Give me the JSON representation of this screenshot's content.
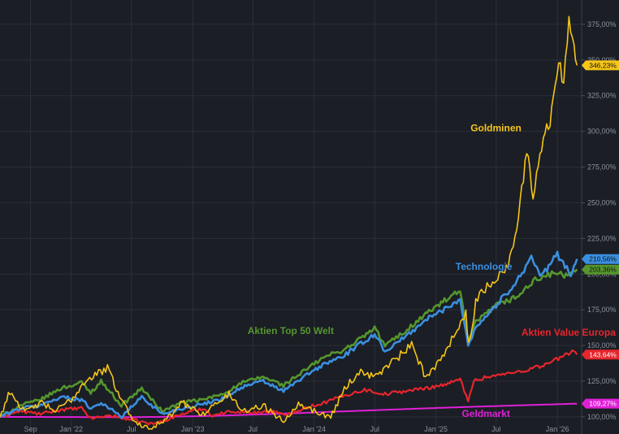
{
  "chart_data": {
    "type": "line",
    "title": "",
    "xlabel": "",
    "ylabel": "",
    "ylim": [
      88,
      392
    ],
    "xlim": [
      "2021-06-01",
      "2026-03-15"
    ],
    "grid": true,
    "legend": "inline labels",
    "y_ticks": [
      "100,00%",
      "125,00%",
      "150,00%",
      "175,00%",
      "200,00%",
      "225,00%",
      "250,00%",
      "275,00%",
      "300,00%",
      "325,00%",
      "350,00%",
      "375,00%"
    ],
    "y_tick_values": [
      100,
      125,
      150,
      175,
      200,
      225,
      250,
      275,
      300,
      325,
      350,
      375
    ],
    "x_ticks": [
      {
        "label": "Sep",
        "date": "2021-09-01"
      },
      {
        "label": "Jan '22",
        "date": "2022-01-01"
      },
      {
        "label": "Jul",
        "date": "2022-07-01"
      },
      {
        "label": "Jan '23",
        "date": "2023-01-01"
      },
      {
        "label": "Jul",
        "date": "2023-07-01"
      },
      {
        "label": "Jan '24",
        "date": "2024-01-01"
      },
      {
        "label": "Jul",
        "date": "2024-07-01"
      },
      {
        "label": "Jan '25",
        "date": "2025-01-01"
      },
      {
        "label": "Jul",
        "date": "2025-07-01"
      },
      {
        "label": "Jan '26",
        "date": "2026-01-01"
      }
    ],
    "series": [
      {
        "name": "Geldmarkt",
        "color": "#e020d8",
        "last_value_label": "109,27%",
        "points": [
          [
            "2021-06-01",
            100
          ],
          [
            "2022-06-01",
            99.8
          ],
          [
            "2022-10-01",
            100
          ],
          [
            "2023-03-01",
            100.7
          ],
          [
            "2023-09-01",
            102
          ],
          [
            "2024-03-01",
            103.6
          ],
          [
            "2024-09-01",
            105.2
          ],
          [
            "2025-03-01",
            106.7
          ],
          [
            "2025-09-01",
            108
          ],
          [
            "2026-03-01",
            109.27
          ]
        ]
      },
      {
        "name": "Aktien Value Europa",
        "color": "#e8242c",
        "last_value_label": "143,64%",
        "points": [
          [
            "2021-06-01",
            100
          ],
          [
            "2021-08-01",
            104
          ],
          [
            "2021-10-01",
            102
          ],
          [
            "2021-12-01",
            105
          ],
          [
            "2022-02-01",
            106
          ],
          [
            "2022-03-01",
            99
          ],
          [
            "2022-05-01",
            101
          ],
          [
            "2022-07-01",
            98
          ],
          [
            "2022-09-01",
            95
          ],
          [
            "2022-10-01",
            97
          ],
          [
            "2022-12-01",
            102
          ],
          [
            "2023-02-01",
            106
          ],
          [
            "2023-03-01",
            101
          ],
          [
            "2023-05-01",
            104
          ],
          [
            "2023-07-01",
            103
          ],
          [
            "2023-09-01",
            104
          ],
          [
            "2023-10-01",
            101
          ],
          [
            "2023-12-01",
            106
          ],
          [
            "2024-02-01",
            110
          ],
          [
            "2024-04-01",
            115
          ],
          [
            "2024-06-01",
            119
          ],
          [
            "2024-08-01",
            116
          ],
          [
            "2024-10-01",
            118
          ],
          [
            "2024-12-01",
            120
          ],
          [
            "2025-02-01",
            123
          ],
          [
            "2025-03-15",
            126
          ],
          [
            "2025-04-08",
            112
          ],
          [
            "2025-04-25",
            125
          ],
          [
            "2025-06-01",
            128
          ],
          [
            "2025-08-01",
            130
          ],
          [
            "2025-10-01",
            133
          ],
          [
            "2025-12-01",
            137
          ],
          [
            "2026-01-15",
            142
          ],
          [
            "2026-02-20",
            147
          ],
          [
            "2026-03-01",
            143.64
          ]
        ]
      },
      {
        "name": "Aktien Top 50 Welt",
        "color": "#55962e",
        "last_value_label": "203,36%",
        "points": [
          [
            "2021-06-01",
            100
          ],
          [
            "2021-08-01",
            108
          ],
          [
            "2021-10-01",
            112
          ],
          [
            "2021-12-01",
            120
          ],
          [
            "2022-02-01",
            124
          ],
          [
            "2022-03-01",
            117
          ],
          [
            "2022-04-01",
            125
          ],
          [
            "2022-06-01",
            108
          ],
          [
            "2022-08-01",
            120
          ],
          [
            "2022-10-01",
            104
          ],
          [
            "2022-12-01",
            110
          ],
          [
            "2023-02-01",
            112
          ],
          [
            "2023-04-01",
            116
          ],
          [
            "2023-06-01",
            124
          ],
          [
            "2023-08-01",
            128
          ],
          [
            "2023-10-01",
            122
          ],
          [
            "2023-12-01",
            132
          ],
          [
            "2024-02-01",
            142
          ],
          [
            "2024-04-01",
            147
          ],
          [
            "2024-06-01",
            157
          ],
          [
            "2024-07-01",
            162
          ],
          [
            "2024-08-01",
            150
          ],
          [
            "2024-10-01",
            160
          ],
          [
            "2024-12-01",
            172
          ],
          [
            "2025-02-01",
            182
          ],
          [
            "2025-03-15",
            188
          ],
          [
            "2025-04-08",
            152
          ],
          [
            "2025-05-01",
            166
          ],
          [
            "2025-07-01",
            178
          ],
          [
            "2025-09-01",
            184
          ],
          [
            "2025-11-01",
            197
          ],
          [
            "2026-01-01",
            201
          ],
          [
            "2026-02-01",
            198
          ],
          [
            "2026-03-01",
            203.36
          ]
        ]
      },
      {
        "name": "Technologie",
        "color": "#3a8fe0",
        "last_value_label": "210,56%",
        "points": [
          [
            "2021-06-01",
            100
          ],
          [
            "2021-08-01",
            106
          ],
          [
            "2021-10-01",
            108
          ],
          [
            "2021-12-01",
            114
          ],
          [
            "2022-02-01",
            112
          ],
          [
            "2022-03-01",
            106
          ],
          [
            "2022-04-01",
            110
          ],
          [
            "2022-06-01",
            100
          ],
          [
            "2022-08-01",
            114
          ],
          [
            "2022-10-01",
            102
          ],
          [
            "2022-12-01",
            106
          ],
          [
            "2023-02-01",
            109
          ],
          [
            "2023-04-01",
            113
          ],
          [
            "2023-06-01",
            121
          ],
          [
            "2023-08-01",
            125
          ],
          [
            "2023-10-01",
            118
          ],
          [
            "2023-12-01",
            128
          ],
          [
            "2024-02-01",
            137
          ],
          [
            "2024-04-01",
            143
          ],
          [
            "2024-06-01",
            153
          ],
          [
            "2024-07-01",
            158
          ],
          [
            "2024-08-01",
            146
          ],
          [
            "2024-10-01",
            156
          ],
          [
            "2024-12-01",
            168
          ],
          [
            "2025-02-01",
            176
          ],
          [
            "2025-03-15",
            183
          ],
          [
            "2025-04-08",
            150
          ],
          [
            "2025-05-01",
            163
          ],
          [
            "2025-07-01",
            178
          ],
          [
            "2025-09-01",
            195
          ],
          [
            "2025-10-15",
            212
          ],
          [
            "2025-11-15",
            198
          ],
          [
            "2026-01-01",
            214
          ],
          [
            "2026-02-10",
            200
          ],
          [
            "2026-03-01",
            210.56
          ]
        ]
      },
      {
        "name": "Goldminen",
        "color": "#f5c518",
        "last_value_label": "346,23%",
        "points": [
          [
            "2021-06-01",
            100
          ],
          [
            "2021-07-01",
            118
          ],
          [
            "2021-08-15",
            103
          ],
          [
            "2021-10-01",
            110
          ],
          [
            "2021-11-15",
            104
          ],
          [
            "2022-01-01",
            112
          ],
          [
            "2022-02-15",
            126
          ],
          [
            "2022-04-20",
            134
          ],
          [
            "2022-06-01",
            112
          ],
          [
            "2022-07-15",
            95
          ],
          [
            "2022-09-01",
            93
          ],
          [
            "2022-10-15",
            98
          ],
          [
            "2022-12-01",
            110
          ],
          [
            "2023-02-01",
            102
          ],
          [
            "2023-04-20",
            116
          ],
          [
            "2023-06-01",
            104
          ],
          [
            "2023-08-01",
            108
          ],
          [
            "2023-10-01",
            97
          ],
          [
            "2023-11-15",
            110
          ],
          [
            "2024-01-01",
            104
          ],
          [
            "2024-02-20",
            100
          ],
          [
            "2024-04-01",
            120
          ],
          [
            "2024-05-20",
            132
          ],
          [
            "2024-07-01",
            128
          ],
          [
            "2024-09-01",
            140
          ],
          [
            "2024-10-20",
            150
          ],
          [
            "2024-12-01",
            128
          ],
          [
            "2025-01-15",
            140
          ],
          [
            "2025-03-01",
            160
          ],
          [
            "2025-04-01",
            172
          ],
          [
            "2025-04-09",
            150
          ],
          [
            "2025-05-01",
            180
          ],
          [
            "2025-06-15",
            195
          ],
          [
            "2025-08-01",
            203
          ],
          [
            "2025-09-01",
            232
          ],
          [
            "2025-10-01",
            285
          ],
          [
            "2025-10-20",
            255
          ],
          [
            "2025-11-15",
            292
          ],
          [
            "2025-12-10",
            308
          ],
          [
            "2026-01-05",
            355
          ],
          [
            "2026-01-20",
            330
          ],
          [
            "2026-02-05",
            385
          ],
          [
            "2026-02-20",
            360
          ],
          [
            "2026-03-01",
            346.23
          ]
        ]
      }
    ],
    "annotations": [
      {
        "text": "Goldminen",
        "series": "Goldminen",
        "at": [
          "2025-04-15",
          300
        ]
      },
      {
        "text": "Technologie",
        "series": "Technologie",
        "at": [
          "2025-03-01",
          203
        ]
      },
      {
        "text": "Aktien Top 50 Welt",
        "series": "Aktien Top 50 Welt",
        "at": [
          "2023-06-15",
          158
        ]
      },
      {
        "text": "Aktien Value Europa",
        "series": "Aktien Value Europa",
        "at": [
          "2025-09-15",
          157
        ]
      },
      {
        "text": "Geldmarkt",
        "series": "Geldmarkt",
        "at": [
          "2025-03-20",
          100
        ]
      }
    ]
  }
}
